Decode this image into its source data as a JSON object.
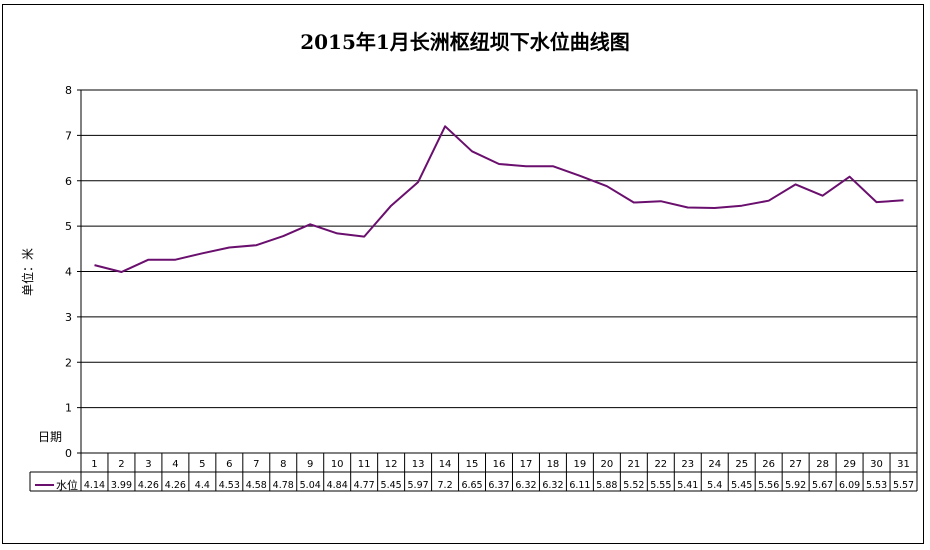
{
  "chart_data": {
    "type": "line",
    "title": "2015年1月长洲枢纽坝下水位曲线图",
    "ylabel": "单位：米",
    "xlabel": "日期",
    "ylim": [
      0,
      8
    ],
    "yticks": [
      0,
      1,
      2,
      3,
      4,
      5,
      6,
      7,
      8
    ],
    "grid": true,
    "legend": "data-table-left",
    "categories": [
      "1",
      "2",
      "3",
      "4",
      "5",
      "6",
      "7",
      "8",
      "9",
      "10",
      "11",
      "12",
      "13",
      "14",
      "15",
      "16",
      "17",
      "18",
      "19",
      "20",
      "21",
      "22",
      "23",
      "24",
      "25",
      "26",
      "27",
      "28",
      "29",
      "30",
      "31"
    ],
    "series": [
      {
        "name": "水位",
        "color": "#6a0f6e",
        "values": [
          4.14,
          3.99,
          4.26,
          4.26,
          4.4,
          4.53,
          4.58,
          4.78,
          5.04,
          4.84,
          4.77,
          5.45,
          5.97,
          7.2,
          6.65,
          6.37,
          6.32,
          6.32,
          6.11,
          5.88,
          5.52,
          5.55,
          5.41,
          5.4,
          5.45,
          5.56,
          5.92,
          5.67,
          6.09,
          5.53,
          5.57
        ]
      }
    ]
  }
}
